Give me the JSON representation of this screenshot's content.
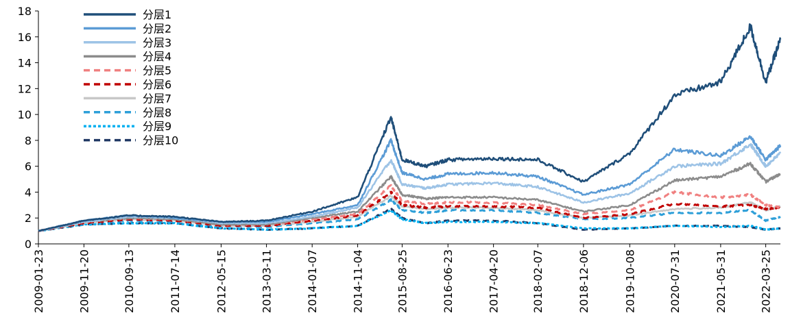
{
  "chart_data": {
    "type": "line",
    "title": "",
    "xlabel": "",
    "ylabel": "",
    "ylim": [
      0,
      18
    ],
    "yticks": [
      0,
      2,
      4,
      6,
      8,
      10,
      12,
      14,
      16,
      18
    ],
    "x_tick_labels": [
      "2009-01-23",
      "2009-11-20",
      "2010-09-13",
      "2011-07-14",
      "2012-05-15",
      "2013-03-11",
      "2014-01-07",
      "2014-11-04",
      "2015-08-25",
      "2016-06-23",
      "2017-04-20",
      "2018-02-07",
      "2018-12-06",
      "2019-10-08",
      "2020-07-31",
      "2021-05-31",
      "2022-03-25"
    ],
    "x": [
      "2009-01-23",
      "2009-11-20",
      "2010-09-13",
      "2011-07-14",
      "2012-05-15",
      "2013-03-11",
      "2014-01-07",
      "2014-11-04",
      "2015-06-12",
      "2015-08-25",
      "2016-01-28",
      "2016-06-23",
      "2017-04-20",
      "2018-02-07",
      "2018-12-06",
      "2019-10-08",
      "2020-07-31",
      "2021-05-31",
      "2021-12-14",
      "2022-03-25",
      "2022-06-30"
    ],
    "grid": false,
    "legend_position": "top-left",
    "series": [
      {
        "name": "分层1",
        "color": "#1f4e79",
        "style": "solid",
        "values": [
          1.0,
          1.8,
          2.2,
          2.1,
          1.7,
          1.8,
          2.5,
          3.6,
          9.8,
          6.5,
          6.0,
          6.5,
          6.6,
          6.5,
          4.8,
          7.0,
          11.5,
          12.5,
          16.8,
          12.5,
          15.8
        ]
      },
      {
        "name": "分层2",
        "color": "#5b9bd5",
        "style": "solid",
        "values": [
          1.0,
          1.8,
          2.2,
          2.0,
          1.7,
          1.7,
          2.3,
          3.0,
          8.0,
          5.5,
          5.0,
          5.4,
          5.5,
          5.2,
          3.8,
          4.6,
          7.3,
          6.8,
          8.3,
          6.5,
          7.6
        ]
      },
      {
        "name": "分层3",
        "color": "#9dc3e6",
        "style": "solid",
        "values": [
          1.0,
          1.7,
          2.1,
          2.0,
          1.6,
          1.6,
          2.1,
          2.8,
          6.5,
          4.6,
          4.3,
          4.6,
          4.7,
          4.4,
          3.2,
          3.9,
          6.0,
          6.2,
          7.7,
          6.0,
          7.0
        ]
      },
      {
        "name": "分层4",
        "color": "#8c8c8c",
        "style": "solid",
        "values": [
          1.0,
          1.7,
          2.0,
          1.9,
          1.5,
          1.5,
          2.0,
          2.5,
          5.2,
          3.8,
          3.5,
          3.6,
          3.6,
          3.4,
          2.5,
          3.0,
          4.9,
          5.2,
          6.2,
          4.8,
          5.4
        ]
      },
      {
        "name": "分层5",
        "color": "#f08080",
        "style": "dashed",
        "values": [
          1.0,
          1.7,
          2.0,
          1.9,
          1.5,
          1.5,
          1.9,
          2.3,
          4.5,
          3.3,
          3.1,
          3.2,
          3.2,
          3.0,
          2.3,
          2.6,
          4.0,
          3.6,
          3.8,
          3.0,
          2.8
        ]
      },
      {
        "name": "分层6",
        "color": "#c00000",
        "style": "dashed",
        "values": [
          1.0,
          1.6,
          1.9,
          1.8,
          1.4,
          1.4,
          1.8,
          2.2,
          4.0,
          3.0,
          2.8,
          2.9,
          2.9,
          2.8,
          2.0,
          2.3,
          3.1,
          2.9,
          3.0,
          2.7,
          2.8
        ]
      },
      {
        "name": "分层7",
        "color": "#c8c8c8",
        "style": "solid",
        "values": [
          1.0,
          1.6,
          1.9,
          1.8,
          1.4,
          1.4,
          1.7,
          2.1,
          3.7,
          2.9,
          2.7,
          2.8,
          2.8,
          2.6,
          2.0,
          2.2,
          2.7,
          2.8,
          3.2,
          2.6,
          2.9
        ]
      },
      {
        "name": "分层8",
        "color": "#2e9fd8",
        "style": "dashed",
        "values": [
          1.0,
          1.6,
          1.8,
          1.7,
          1.4,
          1.3,
          1.6,
          1.9,
          3.4,
          2.6,
          2.4,
          2.6,
          2.6,
          2.4,
          1.9,
          2.0,
          2.4,
          2.4,
          2.6,
          1.8,
          2.1
        ]
      },
      {
        "name": "分层9",
        "color": "#00b0f0",
        "style": "dotted",
        "values": [
          1.0,
          1.5,
          1.6,
          1.6,
          1.2,
          1.1,
          1.2,
          1.4,
          2.6,
          1.9,
          1.6,
          1.7,
          1.7,
          1.6,
          1.2,
          1.2,
          1.4,
          1.3,
          1.4,
          1.1,
          1.2
        ]
      },
      {
        "name": "分层10",
        "color": "#203864",
        "style": "dashed",
        "values": [
          1.0,
          1.5,
          1.6,
          1.6,
          1.2,
          1.1,
          1.2,
          1.4,
          2.7,
          2.0,
          1.6,
          1.8,
          1.8,
          1.6,
          1.1,
          1.2,
          1.4,
          1.4,
          1.3,
          1.1,
          1.2
        ]
      }
    ]
  }
}
